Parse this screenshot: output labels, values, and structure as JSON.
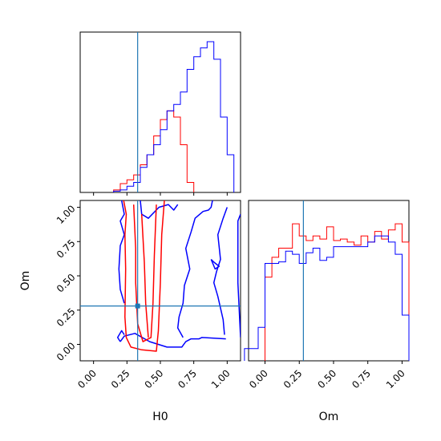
{
  "chart_data": {
    "type": "corner",
    "parameters": [
      "H0",
      "Om"
    ],
    "axis_labels": {
      "x_left": "H0",
      "x_right": "Om",
      "y_left": "Om"
    },
    "ranges": {
      "H0": [
        -0.1,
        1.1
      ],
      "Om": [
        -0.12,
        1.05
      ]
    },
    "ticks": {
      "H0": [
        "0.00",
        "0.25",
        "0.50",
        "0.75",
        "1.00"
      ],
      "Om": [
        "0.00",
        "0.25",
        "0.50",
        "0.75",
        "1.00"
      ]
    },
    "truth": {
      "H0": 0.33,
      "Om": 0.28
    },
    "truth_color": "#1f77b4",
    "series": [
      {
        "color": "#ff0000"
      },
      {
        "color": "#0000ff"
      }
    ],
    "hist_H0": {
      "bin_width": 0.05,
      "red": {
        "edges_start": 0.15,
        "counts": [
          2,
          7,
          10,
          14,
          22,
          30,
          45,
          58,
          65,
          60,
          38,
          8
        ]
      },
      "blue": {
        "edges_start": 0.15,
        "counts": [
          1,
          2,
          5,
          8,
          20,
          30,
          38,
          50,
          65,
          70,
          80,
          98,
          108,
          115,
          120,
          106,
          60,
          30
        ]
      }
    },
    "hist_Om": {
      "bin_width": 0.05,
      "red": {
        "edges_start": 0.0,
        "counts": [
          55,
          68,
          74,
          74,
          90,
          82,
          79,
          82,
          80,
          88,
          79,
          80,
          78,
          76,
          82,
          78,
          85,
          80,
          86,
          90,
          78
        ]
      },
      "blue": {
        "edges_start": -0.15,
        "counts": [
          8,
          8,
          22,
          64,
          64,
          65,
          72,
          70,
          64,
          71,
          74,
          66,
          68,
          75,
          75,
          75,
          75,
          75,
          78,
          82,
          82,
          78,
          70,
          30
        ]
      }
    },
    "contours_2d": {
      "red": [
        [
          [
            0.225,
            1.05
          ],
          [
            0.245,
            0.95
          ],
          [
            0.235,
            0.8
          ],
          [
            0.24,
            0.55
          ],
          [
            0.235,
            0.2
          ],
          [
            0.245,
            0.05
          ],
          [
            0.28,
            -0.02
          ],
          [
            0.36,
            -0.04
          ],
          [
            0.47,
            -0.05
          ],
          [
            0.485,
            0.1
          ],
          [
            0.5,
            0.45
          ],
          [
            0.51,
            0.8
          ],
          [
            0.53,
            1.05
          ]
        ],
        [
          [
            0.3,
            1.02
          ],
          [
            0.315,
            0.7
          ],
          [
            0.315,
            0.45
          ],
          [
            0.33,
            0.15
          ],
          [
            0.37,
            0.02
          ],
          [
            0.43,
            0.05
          ],
          [
            0.445,
            0.3
          ],
          [
            0.455,
            0.65
          ],
          [
            0.47,
            1.02
          ]
        ],
        [
          [
            0.36,
            0.95
          ],
          [
            0.38,
            0.6
          ],
          [
            0.39,
            0.3
          ],
          [
            0.41,
            0.05
          ]
        ]
      ],
      "blue": [
        [
          [
            0.2,
            0.02
          ],
          [
            0.23,
            0.06
          ],
          [
            0.31,
            0.08
          ],
          [
            0.42,
            0.02
          ],
          [
            0.55,
            -0.02
          ],
          [
            0.66,
            -0.02
          ],
          [
            0.69,
            0.02
          ],
          [
            0.73,
            0.04
          ],
          [
            0.79,
            0.04
          ],
          [
            0.81,
            0.05
          ],
          [
            0.99,
            0.04
          ]
        ],
        [
          [
            0.2,
            0.02
          ],
          [
            0.18,
            0.05
          ],
          [
            0.21,
            0.1
          ],
          [
            0.23,
            0.07
          ]
        ],
        [
          [
            0.21,
            1.05
          ],
          [
            0.23,
            0.95
          ],
          [
            0.2,
            0.9
          ],
          [
            0.23,
            0.8
          ],
          [
            0.2,
            0.72
          ],
          [
            0.19,
            0.55
          ],
          [
            0.2,
            0.4
          ],
          [
            0.23,
            0.3
          ]
        ],
        [
          [
            0.35,
            1.05
          ],
          [
            0.36,
            0.95
          ],
          [
            0.41,
            0.92
          ],
          [
            0.49,
            1.0
          ],
          [
            0.56,
            1.02
          ],
          [
            0.6,
            0.98
          ],
          [
            0.63,
            1.02
          ]
        ],
        [
          [
            0.67,
            0.05
          ],
          [
            0.63,
            0.12
          ],
          [
            0.64,
            0.2
          ],
          [
            0.67,
            0.3
          ],
          [
            0.68,
            0.43
          ],
          [
            0.72,
            0.55
          ],
          [
            0.69,
            0.7
          ],
          [
            0.73,
            0.82
          ],
          [
            0.76,
            0.92
          ],
          [
            0.82,
            0.97
          ],
          [
            0.86,
            0.98
          ],
          [
            0.88,
            1.0
          ],
          [
            0.89,
            1.05
          ]
        ],
        [
          [
            0.98,
            0.07
          ],
          [
            0.97,
            0.18
          ],
          [
            0.93,
            0.35
          ],
          [
            0.9,
            0.45
          ],
          [
            0.92,
            0.53
          ],
          [
            0.95,
            0.62
          ],
          [
            0.93,
            0.8
          ],
          [
            0.97,
            0.92
          ],
          [
            1.0,
            1.0
          ]
        ],
        [
          [
            1.1,
            0.05
          ],
          [
            1.08,
            0.45
          ],
          [
            1.08,
            0.9
          ],
          [
            1.1,
            0.95
          ]
        ],
        [
          [
            0.88,
            0.62
          ],
          [
            0.91,
            0.55
          ],
          [
            0.94,
            0.57
          ],
          [
            0.9,
            0.6
          ],
          [
            0.88,
            0.62
          ]
        ]
      ]
    }
  }
}
